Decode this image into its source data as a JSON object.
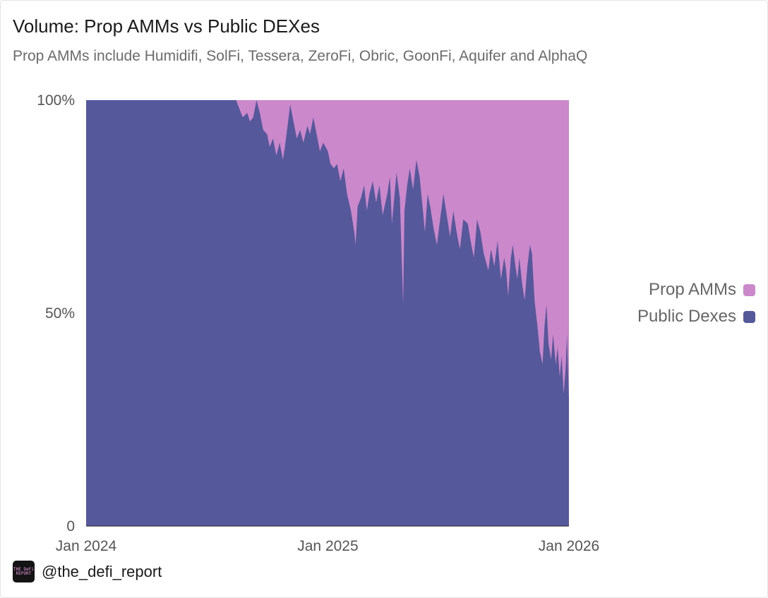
{
  "title": "Volume: Prop AMMs vs Public DEXes",
  "subtitle": "Prop AMMs include Humidifi, SolFi, Tessera, ZeroFi, Obric, GoonFi, Aquifer and AlphaQ",
  "footer": {
    "handle": "@the_defi_report",
    "logo_text": "The DeFi Report"
  },
  "colors": {
    "prop_amms": "#cb89cc",
    "public_dexes": "#55589a",
    "background": "#ffffff"
  },
  "legend": [
    {
      "label": "Prop AMMs",
      "color": "#cb89cc"
    },
    {
      "label": "Public Dexes",
      "color": "#55589a"
    }
  ],
  "chart_data": {
    "type": "area",
    "stacked": "percent",
    "x_axis": {
      "min": "2024-01-01",
      "max": "2026-01-01",
      "ticks": [
        "Jan 2024",
        "Jan 2025",
        "Jan 2026"
      ]
    },
    "y_axis": {
      "min": 0,
      "max": 100,
      "ticks": [
        "0",
        "50%",
        "100%"
      ]
    },
    "legend_position": "right",
    "grid": false,
    "series": [
      {
        "name": "Public Dexes",
        "points": [
          [
            "2024-01-01",
            100
          ],
          [
            "2024-06-01",
            100
          ],
          [
            "2024-08-15",
            100
          ],
          [
            "2024-08-20",
            98
          ],
          [
            "2024-08-25",
            96
          ],
          [
            "2024-09-01",
            97
          ],
          [
            "2024-09-05",
            95
          ],
          [
            "2024-09-10",
            96
          ],
          [
            "2024-09-15",
            100
          ],
          [
            "2024-09-20",
            97
          ],
          [
            "2024-09-25",
            93
          ],
          [
            "2024-10-01",
            92
          ],
          [
            "2024-10-05",
            89
          ],
          [
            "2024-10-10",
            91
          ],
          [
            "2024-10-15",
            87
          ],
          [
            "2024-10-20",
            90
          ],
          [
            "2024-10-25",
            86
          ],
          [
            "2024-10-28",
            89
          ],
          [
            "2024-11-01",
            94
          ],
          [
            "2024-11-05",
            99
          ],
          [
            "2024-11-10",
            95
          ],
          [
            "2024-11-15",
            91
          ],
          [
            "2024-11-20",
            93
          ],
          [
            "2024-11-25",
            90
          ],
          [
            "2024-12-01",
            94
          ],
          [
            "2024-12-05",
            92
          ],
          [
            "2024-12-10",
            96
          ],
          [
            "2024-12-15",
            92
          ],
          [
            "2024-12-20",
            88
          ],
          [
            "2024-12-25",
            90
          ],
          [
            "2025-01-01",
            88
          ],
          [
            "2025-01-05",
            85
          ],
          [
            "2025-01-10",
            84
          ],
          [
            "2025-01-15",
            85
          ],
          [
            "2025-01-20",
            81
          ],
          [
            "2025-01-25",
            84
          ],
          [
            "2025-01-30",
            78
          ],
          [
            "2025-02-05",
            74
          ],
          [
            "2025-02-10",
            69
          ],
          [
            "2025-02-12",
            66
          ],
          [
            "2025-02-15",
            75
          ],
          [
            "2025-02-20",
            77
          ],
          [
            "2025-02-25",
            80
          ],
          [
            "2025-03-01",
            74
          ],
          [
            "2025-03-05",
            78
          ],
          [
            "2025-03-10",
            81
          ],
          [
            "2025-03-15",
            76
          ],
          [
            "2025-03-20",
            80
          ],
          [
            "2025-03-25",
            73
          ],
          [
            "2025-04-01",
            78
          ],
          [
            "2025-04-05",
            82
          ],
          [
            "2025-04-08",
            71
          ],
          [
            "2025-04-12",
            78
          ],
          [
            "2025-04-15",
            83
          ],
          [
            "2025-04-20",
            77
          ],
          [
            "2025-04-25",
            52
          ],
          [
            "2025-04-27",
            74
          ],
          [
            "2025-05-01",
            80
          ],
          [
            "2025-05-05",
            84
          ],
          [
            "2025-05-10",
            79
          ],
          [
            "2025-05-15",
            86
          ],
          [
            "2025-05-20",
            82
          ],
          [
            "2025-05-25",
            74
          ],
          [
            "2025-05-28",
            69
          ],
          [
            "2025-06-01",
            78
          ],
          [
            "2025-06-05",
            75
          ],
          [
            "2025-06-10",
            70
          ],
          [
            "2025-06-15",
            66
          ],
          [
            "2025-06-20",
            72
          ],
          [
            "2025-06-25",
            78
          ],
          [
            "2025-07-01",
            72
          ],
          [
            "2025-07-05",
            68
          ],
          [
            "2025-07-10",
            74
          ],
          [
            "2025-07-15",
            69
          ],
          [
            "2025-07-20",
            65
          ],
          [
            "2025-07-25",
            72
          ],
          [
            "2025-08-01",
            71
          ],
          [
            "2025-08-05",
            67
          ],
          [
            "2025-08-10",
            63
          ],
          [
            "2025-08-15",
            72
          ],
          [
            "2025-08-20",
            69
          ],
          [
            "2025-08-25",
            64
          ],
          [
            "2025-09-01",
            60
          ],
          [
            "2025-09-05",
            65
          ],
          [
            "2025-09-10",
            61
          ],
          [
            "2025-09-15",
            67
          ],
          [
            "2025-09-20",
            58
          ],
          [
            "2025-09-25",
            63
          ],
          [
            "2025-09-28",
            60
          ],
          [
            "2025-10-01",
            54
          ],
          [
            "2025-10-05",
            63
          ],
          [
            "2025-10-08",
            66
          ],
          [
            "2025-10-12",
            61
          ],
          [
            "2025-10-15",
            58
          ],
          [
            "2025-10-18",
            63
          ],
          [
            "2025-10-22",
            57
          ],
          [
            "2025-10-26",
            53
          ],
          [
            "2025-10-30",
            61
          ],
          [
            "2025-11-03",
            66
          ],
          [
            "2025-11-06",
            64
          ],
          [
            "2025-11-10",
            53
          ],
          [
            "2025-11-15",
            46
          ],
          [
            "2025-11-18",
            41
          ],
          [
            "2025-11-22",
            38
          ],
          [
            "2025-11-25",
            47
          ],
          [
            "2025-11-28",
            52
          ],
          [
            "2025-12-01",
            43
          ],
          [
            "2025-12-05",
            39
          ],
          [
            "2025-12-08",
            45
          ],
          [
            "2025-12-12",
            38
          ],
          [
            "2025-12-15",
            42
          ],
          [
            "2025-12-18",
            35
          ],
          [
            "2025-12-21",
            40
          ],
          [
            "2025-12-24",
            31
          ],
          [
            "2025-12-27",
            37
          ],
          [
            "2025-12-29",
            45
          ],
          [
            "2026-01-01",
            30
          ]
        ]
      },
      {
        "name": "Prop AMMs",
        "stacked_remainder_of": "Public Dexes"
      }
    ]
  }
}
